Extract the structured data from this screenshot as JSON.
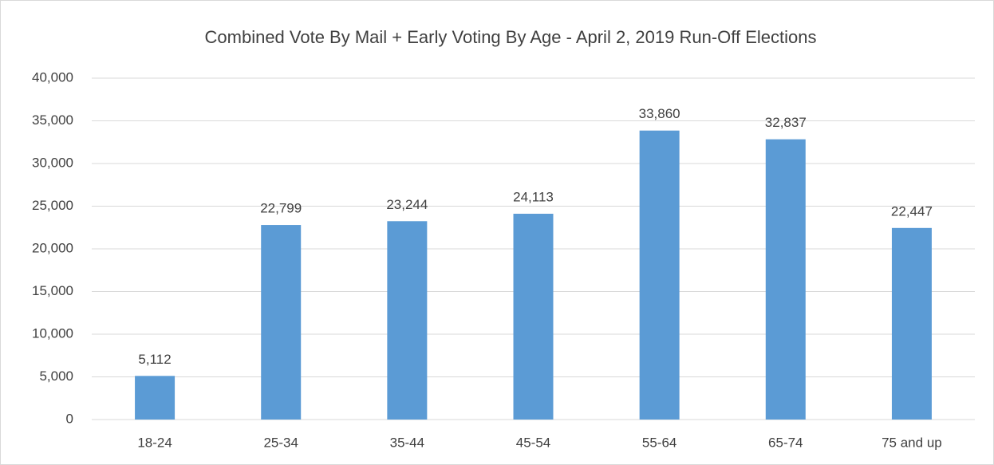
{
  "chart_data": {
    "type": "bar",
    "title": "Combined Vote By Mail + Early Voting By Age - April 2, 2019 Run-Off Elections",
    "categories": [
      "18-24",
      "25-34",
      "35-44",
      "45-54",
      "55-64",
      "65-74",
      "75 and up"
    ],
    "values": [
      5112,
      22799,
      23244,
      24113,
      33860,
      32837,
      22447
    ],
    "value_labels": [
      "5,112",
      "22,799",
      "23,244",
      "24,113",
      "33,860",
      "32,837",
      "22,447"
    ],
    "color": "#5b9bd5",
    "ylim": [
      0,
      40000
    ],
    "yticks": [
      0,
      {
        "value": 5000,
        "label": "5,000"
      },
      {
        "value": 10000,
        "label": "10,000"
      },
      {
        "value": 15000,
        "label": "15,000"
      },
      {
        "value": 20000,
        "label": "20,000"
      },
      {
        "value": 25000,
        "label": "25,000"
      },
      {
        "value": 30000,
        "label": "30,000"
      },
      {
        "value": 35000,
        "label": "35,000"
      },
      {
        "value": 40000,
        "label": "40,000"
      }
    ],
    "grid": true
  }
}
